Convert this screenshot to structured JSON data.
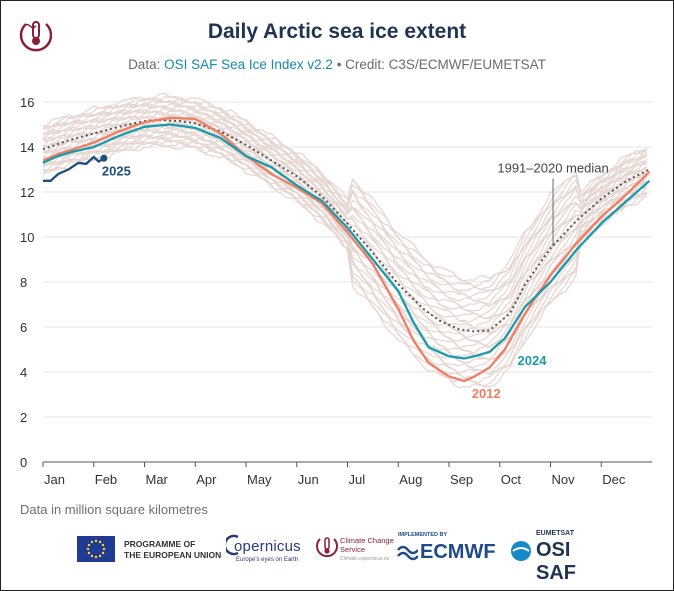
{
  "header": {
    "title": "Daily Arctic sea ice extent",
    "subtitle_prefix": "Data: ",
    "subtitle_source": "OSI SAF Sea Ice Index v2.2",
    "subtitle_credit": " • Credit: C3S/ECMWF/EUMETSAT"
  },
  "footer": {
    "units_note": "Data in million square kilometres",
    "eu_line1": "PROGRAMME OF",
    "eu_line2": "THE EUROPEAN UNION",
    "copernicus": "opernicus",
    "copernicus_tagline": "Europe's eyes on Earth",
    "c3s": "Climate Change Service",
    "c3s_tagline": "Climate.copernicus.eu",
    "ecmwf_small": "IMPLEMENTED BY",
    "ecmwf": "ECMWF",
    "eumetsat_small": "EUMETSAT",
    "osisaf": "OSI SAF"
  },
  "colors": {
    "title": "#1f3454",
    "source_link": "#1789a8",
    "series_2012": "#f07d64",
    "series_2024": "#1a9bab",
    "series_2025": "#1d4f7a",
    "median": "#555555",
    "historical": "#e6d5d0"
  },
  "chart_data": {
    "type": "line",
    "title": "Daily Arctic sea ice extent",
    "ylabel": "Data in million square kilometres",
    "ylim": [
      0,
      16
    ],
    "yticks": [
      0,
      2,
      4,
      6,
      8,
      10,
      12,
      14,
      16
    ],
    "xlim": [
      0,
      12
    ],
    "xticks": [
      "Jan",
      "Feb",
      "Mar",
      "Apr",
      "May",
      "Jun",
      "Jul",
      "Aug",
      "Sep",
      "Oct",
      "Nov",
      "Dec"
    ],
    "grid": true,
    "series": [
      {
        "name": "1991–2020 median",
        "label": "1991–2020 median",
        "style": "dotted",
        "x": [
          0,
          0.5,
          1,
          1.5,
          2,
          2.3,
          2.7,
          3,
          3.5,
          4,
          4.5,
          5,
          5.5,
          6,
          6.5,
          7,
          7.5,
          7.8,
          8.2,
          8.5,
          8.8,
          9.2,
          9.5,
          10,
          10.5,
          11,
          11.5,
          11.95
        ],
        "values": [
          13.9,
          14.3,
          14.6,
          14.9,
          15.15,
          15.2,
          15.15,
          15.05,
          14.7,
          14.1,
          13.4,
          12.7,
          11.8,
          10.6,
          9.3,
          7.9,
          6.8,
          6.3,
          5.9,
          5.8,
          5.85,
          6.6,
          7.9,
          9.5,
          10.7,
          11.7,
          12.5,
          13.0
        ]
      },
      {
        "name": "2012",
        "label": "2012",
        "x": [
          0,
          0.3,
          0.6,
          1,
          1.5,
          2,
          2.5,
          3,
          3.5,
          4,
          4.5,
          5,
          5.5,
          6,
          6.5,
          7,
          7.3,
          7.6,
          8,
          8.3,
          8.5,
          8.8,
          9.1,
          9.5,
          10,
          10.5,
          11,
          11.5,
          11.95
        ],
        "values": [
          13.4,
          13.7,
          13.9,
          14.2,
          14.7,
          15.1,
          15.3,
          15.25,
          14.6,
          13.6,
          12.8,
          12.2,
          11.5,
          10.2,
          8.8,
          6.8,
          5.4,
          4.4,
          3.8,
          3.6,
          3.8,
          4.2,
          5.0,
          6.6,
          8.3,
          9.7,
          10.9,
          11.9,
          12.9
        ]
      },
      {
        "name": "2024",
        "label": "2024",
        "x": [
          0,
          0.3,
          0.6,
          1,
          1.5,
          2,
          2.5,
          3,
          3.5,
          4,
          4.5,
          5,
          5.5,
          6,
          6.5,
          7,
          7.3,
          7.6,
          8,
          8.3,
          8.5,
          8.8,
          9.1,
          9.5,
          10,
          10.5,
          11,
          11.5,
          11.95
        ],
        "values": [
          13.3,
          13.6,
          13.8,
          14.0,
          14.5,
          14.9,
          15.0,
          14.85,
          14.4,
          13.6,
          13.1,
          12.3,
          11.6,
          10.4,
          9.0,
          7.6,
          6.2,
          5.1,
          4.7,
          4.6,
          4.7,
          4.9,
          5.5,
          6.9,
          8.0,
          9.4,
          10.6,
          11.6,
          12.5
        ]
      },
      {
        "name": "2025",
        "label": "2025",
        "x": [
          0,
          0.15,
          0.3,
          0.5,
          0.7,
          0.85,
          1.0,
          1.1,
          1.2
        ],
        "values": [
          12.5,
          12.5,
          12.8,
          13.0,
          13.3,
          13.25,
          13.55,
          13.35,
          13.5
        ]
      }
    ]
  }
}
